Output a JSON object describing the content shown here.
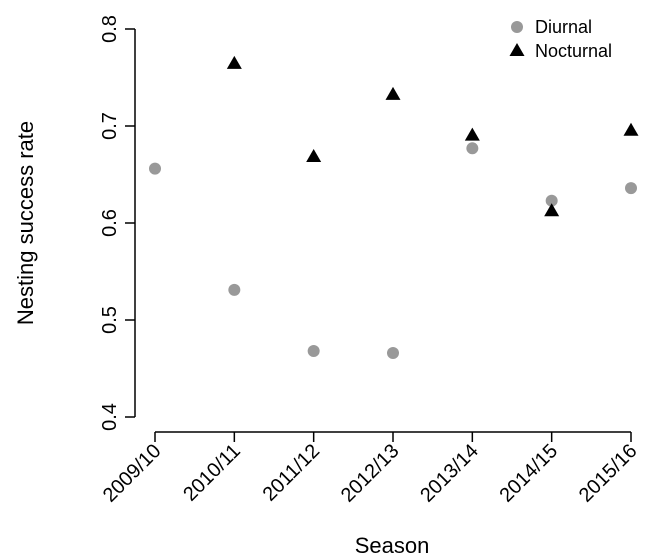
{
  "chart_data": {
    "type": "scatter",
    "title": "",
    "xlabel": "Season",
    "ylabel": "Nesting success rate",
    "categories": [
      "2009/10",
      "2010/11",
      "2011/12",
      "2012/13",
      "2013/14",
      "2014/15",
      "2015/16"
    ],
    "ylim": [
      0.4,
      0.8
    ],
    "yticks": [
      "0.4",
      "0.5",
      "0.6",
      "0.7",
      "0.8"
    ],
    "grid": false,
    "legend_position": "top-right",
    "series": [
      {
        "name": "Diurnal",
        "marker": "circle",
        "color": "#999999",
        "values": [
          0.656,
          0.531,
          0.468,
          0.466,
          0.677,
          0.623,
          0.636
        ]
      },
      {
        "name": "Nocturnal",
        "marker": "triangle",
        "color": "#000000",
        "values": [
          null,
          0.764,
          0.668,
          0.732,
          0.69,
          0.612,
          0.695
        ]
      }
    ]
  }
}
